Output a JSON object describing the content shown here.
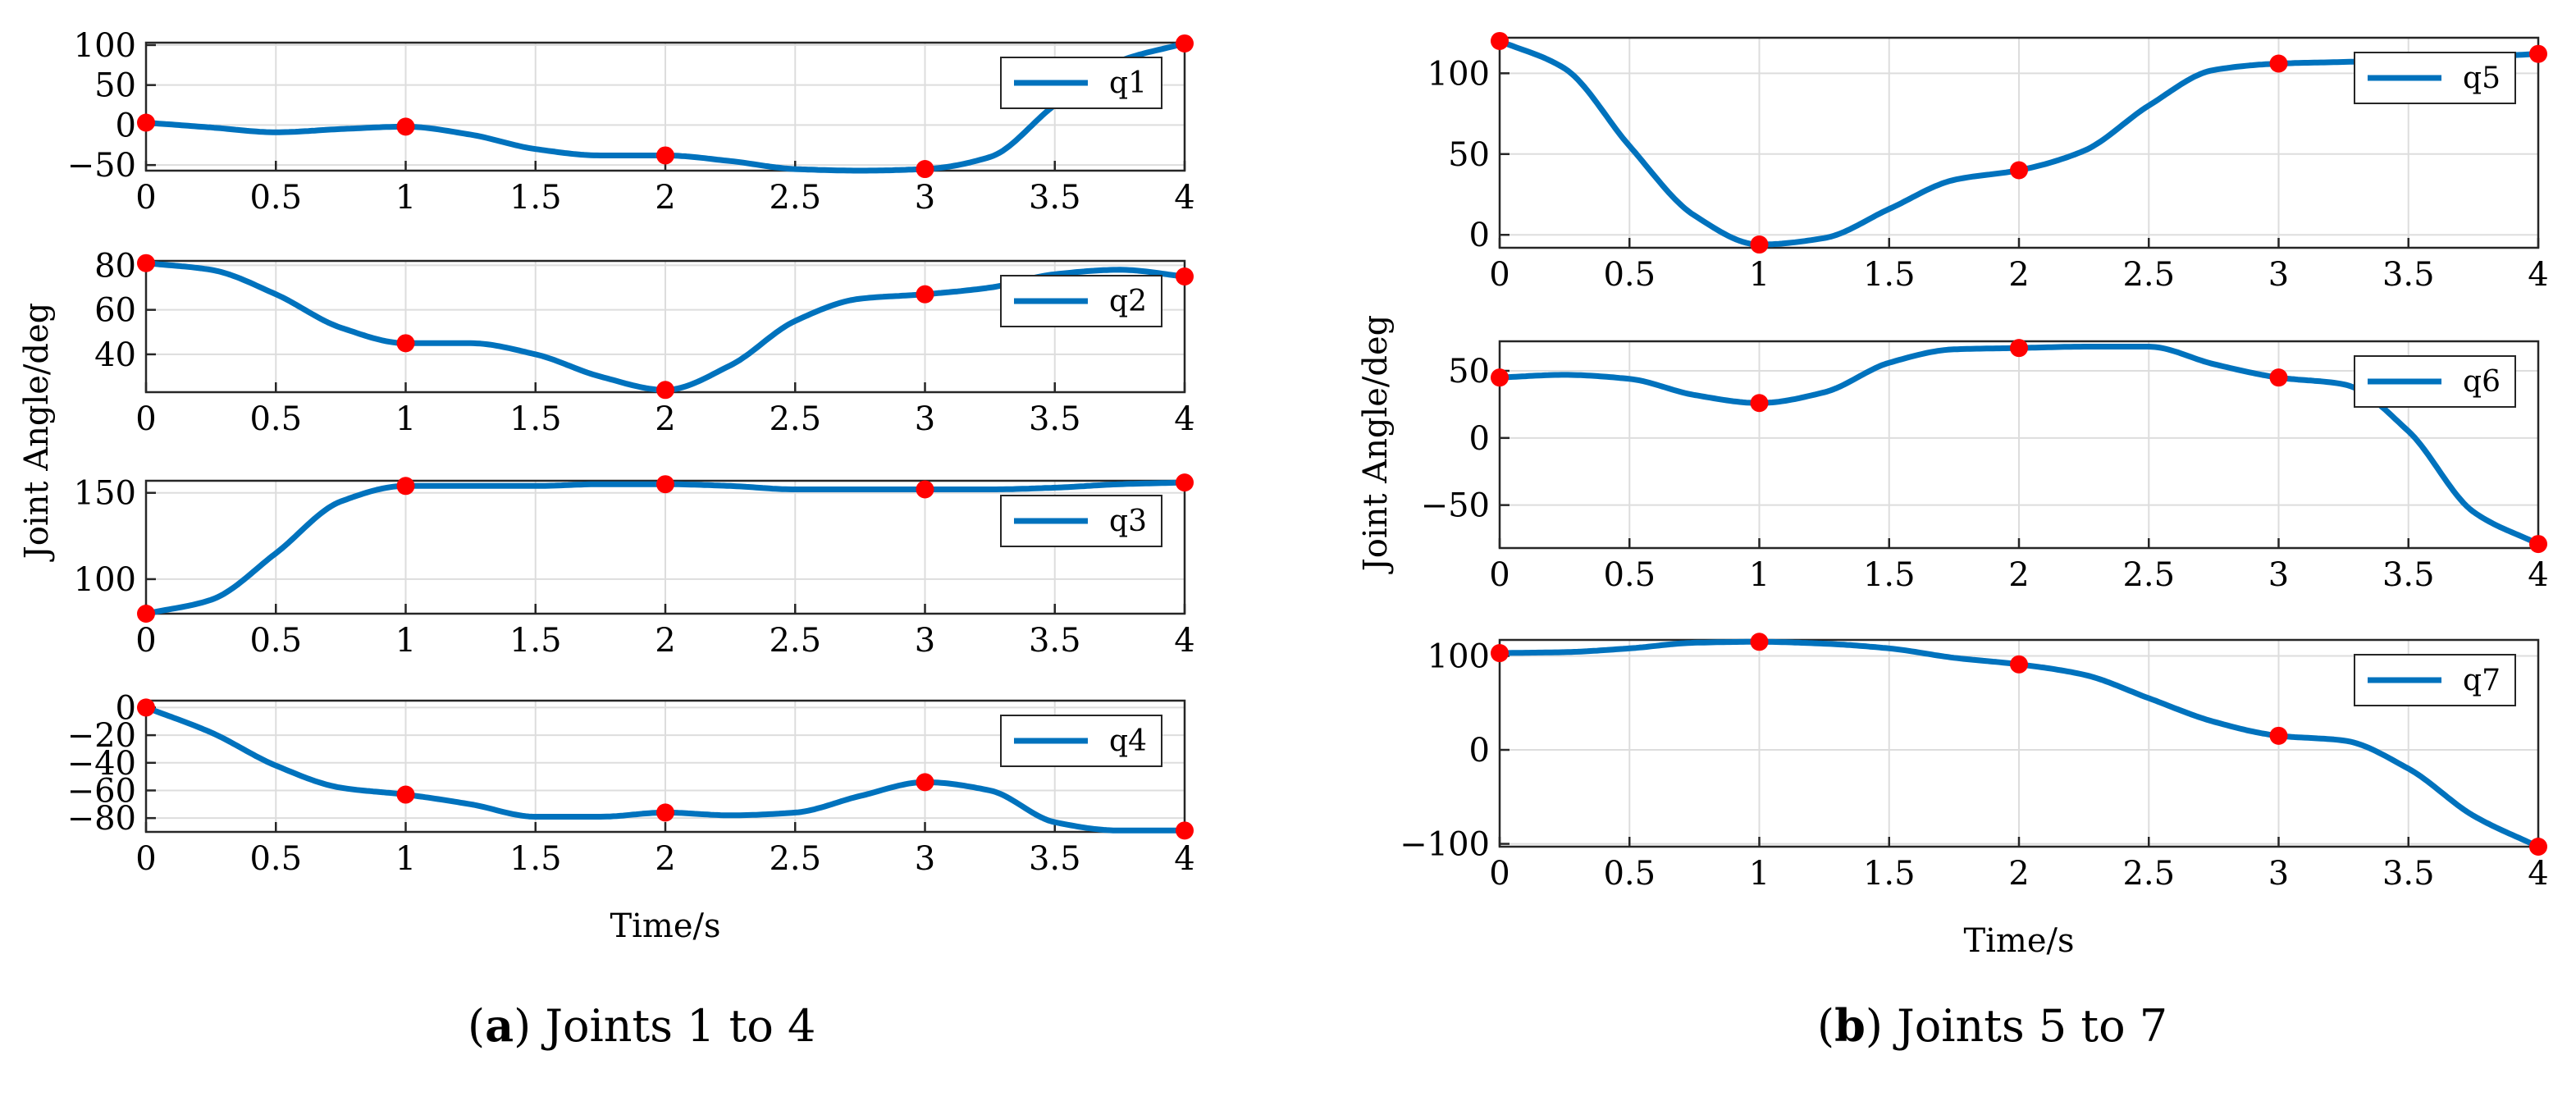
{
  "figure": {
    "captions": [
      {
        "tag": "a",
        "text": "Joints 1 to 4"
      },
      {
        "tag": "b",
        "text": "Joints 5 to 7"
      }
    ],
    "line_color": "#0072BD",
    "marker_color": "#FF0000"
  },
  "chart_data": [
    {
      "type": "line",
      "group": "a",
      "legend": "q1",
      "xlabel": "Time/s",
      "ylabel": "Joint Angle/deg",
      "xlim": [
        0,
        4
      ],
      "ylim": [
        -57,
        103
      ],
      "xticks": [
        0,
        0.5,
        1,
        1.5,
        2,
        2.5,
        3,
        3.5,
        4
      ],
      "xticklabels": [
        "0",
        "0.5",
        "1",
        "1.5",
        "2",
        "2.5",
        "3",
        "3.5",
        "4"
      ],
      "yticks": [
        -50,
        0,
        50,
        100
      ],
      "yticklabels": [
        "−50",
        "0",
        "50",
        "100"
      ],
      "waypoints": {
        "x": [
          0,
          1,
          2,
          3,
          4
        ],
        "y": [
          3,
          -2,
          -38,
          -55,
          102
        ]
      },
      "curve": {
        "x": [
          0,
          0.25,
          0.5,
          0.75,
          1,
          1.25,
          1.5,
          1.75,
          2,
          2.25,
          2.5,
          2.75,
          3,
          3.25,
          3.5,
          3.75,
          4
        ],
        "y": [
          3,
          -3,
          -9,
          -5,
          -2,
          -12,
          -30,
          -38,
          -38,
          -45,
          -55,
          -57,
          -55,
          -40,
          25,
          80,
          102
        ]
      }
    },
    {
      "type": "line",
      "group": "a",
      "legend": "q2",
      "xlim": [
        0,
        4
      ],
      "ylim": [
        23,
        82
      ],
      "xticks": [
        0,
        0.5,
        1,
        1.5,
        2,
        2.5,
        3,
        3.5,
        4
      ],
      "xticklabels": [
        "0",
        "0.5",
        "1",
        "1.5",
        "2",
        "2.5",
        "3",
        "3.5",
        "4"
      ],
      "yticks": [
        40,
        60,
        80
      ],
      "yticklabels": [
        "40",
        "60",
        "80"
      ],
      "waypoints": {
        "x": [
          0,
          1,
          2,
          3,
          4
        ],
        "y": [
          81,
          45,
          24,
          67,
          75
        ]
      },
      "curve": {
        "x": [
          0,
          0.25,
          0.5,
          0.75,
          1,
          1.25,
          1.5,
          1.75,
          2,
          2.25,
          2.5,
          2.75,
          3,
          3.25,
          3.5,
          3.75,
          4
        ],
        "y": [
          81,
          78,
          67,
          52,
          45,
          45,
          40,
          30,
          24,
          35,
          55,
          65,
          67,
          70,
          76,
          78,
          75
        ]
      }
    },
    {
      "type": "line",
      "group": "a",
      "legend": "q3",
      "xlim": [
        0,
        4
      ],
      "ylim": [
        80,
        157
      ],
      "xticks": [
        0,
        0.5,
        1,
        1.5,
        2,
        2.5,
        3,
        3.5,
        4
      ],
      "xticklabels": [
        "0",
        "0.5",
        "1",
        "1.5",
        "2",
        "2.5",
        "3",
        "3.5",
        "4"
      ],
      "yticks": [
        100,
        150
      ],
      "yticklabels": [
        "100",
        "150"
      ],
      "waypoints": {
        "x": [
          0,
          1,
          2,
          3,
          4
        ],
        "y": [
          80,
          154,
          155,
          152,
          156
        ]
      },
      "curve": {
        "x": [
          0,
          0.25,
          0.5,
          0.75,
          1,
          1.25,
          1.5,
          1.75,
          2,
          2.25,
          2.5,
          2.75,
          3,
          3.25,
          3.5,
          3.75,
          4
        ],
        "y": [
          80,
          88,
          115,
          145,
          154,
          154,
          154,
          155,
          155,
          154,
          152,
          152,
          152,
          152,
          153,
          155,
          156
        ]
      }
    },
    {
      "type": "line",
      "group": "a",
      "legend": "q4",
      "xlabel": "Time/s",
      "xlim": [
        0,
        4
      ],
      "ylim": [
        -90,
        5
      ],
      "xticks": [
        0,
        0.5,
        1,
        1.5,
        2,
        2.5,
        3,
        3.5,
        4
      ],
      "xticklabels": [
        "0",
        "0.5",
        "1",
        "1.5",
        "2",
        "2.5",
        "3",
        "3.5",
        "4"
      ],
      "yticks": [
        -80,
        -60,
        -40,
        -20,
        0
      ],
      "yticklabels": [
        "−80",
        "−60",
        "−40",
        "−20",
        "0"
      ],
      "waypoints": {
        "x": [
          0,
          1,
          2,
          3,
          4
        ],
        "y": [
          0,
          -63,
          -76,
          -54,
          -89
        ]
      },
      "curve": {
        "x": [
          0,
          0.25,
          0.5,
          0.75,
          1,
          1.25,
          1.5,
          1.75,
          2,
          2.25,
          2.5,
          2.75,
          3,
          3.25,
          3.5,
          3.75,
          4
        ],
        "y": [
          0,
          -18,
          -42,
          -58,
          -63,
          -70,
          -79,
          -79,
          -76,
          -78,
          -76,
          -64,
          -54,
          -60,
          -83,
          -89,
          -89
        ]
      }
    },
    {
      "type": "line",
      "group": "b",
      "legend": "q5",
      "xlabel": "Time/s",
      "ylabel": "Joint Angle/deg",
      "xlim": [
        0,
        4
      ],
      "ylim": [
        -8,
        122
      ],
      "xticks": [
        0,
        0.5,
        1,
        1.5,
        2,
        2.5,
        3,
        3.5,
        4
      ],
      "xticklabels": [
        "0",
        "0.5",
        "1",
        "1.5",
        "2",
        "2.5",
        "3",
        "3.5",
        "4"
      ],
      "yticks": [
        0,
        50,
        100
      ],
      "yticklabels": [
        "0",
        "50",
        "100"
      ],
      "waypoints": {
        "x": [
          0,
          1,
          2,
          3,
          4
        ],
        "y": [
          120,
          -6,
          40,
          106,
          112
        ]
      },
      "curve": {
        "x": [
          0,
          0.25,
          0.5,
          0.75,
          1,
          1.25,
          1.5,
          1.75,
          2,
          2.25,
          2.5,
          2.75,
          3,
          3.25,
          3.5,
          3.75,
          4
        ],
        "y": [
          120,
          103,
          55,
          12,
          -6,
          -2,
          16,
          34,
          40,
          52,
          80,
          102,
          106,
          107,
          108,
          110,
          112
        ]
      }
    },
    {
      "type": "line",
      "group": "b",
      "legend": "q6",
      "xlim": [
        0,
        4
      ],
      "ylim": [
        -82,
        72
      ],
      "xticks": [
        0,
        0.5,
        1,
        1.5,
        2,
        2.5,
        3,
        3.5,
        4
      ],
      "xticklabels": [
        "0",
        "0.5",
        "1",
        "1.5",
        "2",
        "2.5",
        "3",
        "3.5",
        "4"
      ],
      "yticks": [
        -50,
        0,
        50
      ],
      "yticklabels": [
        "−50",
        "0",
        "50"
      ],
      "waypoints": {
        "x": [
          0,
          1,
          2,
          3,
          4
        ],
        "y": [
          45,
          26,
          67,
          45,
          -79
        ]
      },
      "curve": {
        "x": [
          0,
          0.25,
          0.5,
          0.75,
          1,
          1.25,
          1.5,
          1.75,
          2,
          2.25,
          2.5,
          2.75,
          3,
          3.25,
          3.5,
          3.75,
          4
        ],
        "y": [
          45,
          47,
          44,
          32,
          26,
          34,
          56,
          66,
          67,
          68,
          68,
          55,
          45,
          40,
          5,
          -55,
          -79
        ]
      }
    },
    {
      "type": "line",
      "group": "b",
      "legend": "q7",
      "xlabel": "Time/s",
      "xlim": [
        0,
        4
      ],
      "ylim": [
        -103,
        117
      ],
      "xticks": [
        0,
        0.5,
        1,
        1.5,
        2,
        2.5,
        3,
        3.5,
        4
      ],
      "xticklabels": [
        "0",
        "0.5",
        "1",
        "1.5",
        "2",
        "2.5",
        "3",
        "3.5",
        "4"
      ],
      "yticks": [
        -100,
        0,
        100
      ],
      "yticklabels": [
        "−100",
        "0",
        "100"
      ],
      "waypoints": {
        "x": [
          0,
          1,
          2,
          3,
          4
        ],
        "y": [
          103,
          115,
          91,
          15,
          -103
        ]
      },
      "curve": {
        "x": [
          0,
          0.25,
          0.5,
          0.75,
          1,
          1.25,
          1.5,
          1.75,
          2,
          2.25,
          2.5,
          2.75,
          3,
          3.25,
          3.5,
          3.75,
          4
        ],
        "y": [
          103,
          104,
          108,
          114,
          115,
          113,
          108,
          98,
          91,
          80,
          55,
          30,
          15,
          10,
          -20,
          -70,
          -103
        ]
      }
    }
  ]
}
